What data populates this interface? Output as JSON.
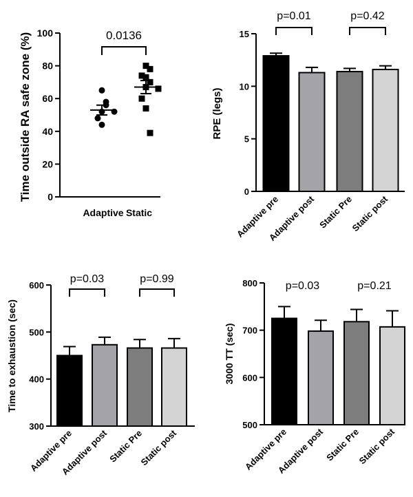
{
  "chart_data": [
    {
      "type": "scatter",
      "ylabel": "Time outside RA safe zone (%)",
      "ylim": [
        0,
        100
      ],
      "yticks": [
        0,
        20,
        40,
        60,
        80,
        100
      ],
      "categories": [
        "Adaptive",
        "Static"
      ],
      "series": [
        {
          "name": "Adaptive",
          "marker": "circle",
          "points": [
            65,
            58,
            56,
            52,
            52,
            48,
            44
          ],
          "mean": 53,
          "sem": 3
        },
        {
          "name": "Static",
          "marker": "square",
          "points": [
            80,
            78,
            74,
            73,
            70,
            70,
            67,
            66,
            60,
            54,
            39
          ],
          "mean": 67,
          "sem": 4
        }
      ],
      "annotations": [
        {
          "text": "0.0136",
          "from": 0,
          "to": 1
        }
      ],
      "color": "#000000"
    },
    {
      "type": "bar",
      "ylabel": "RPE (legs)",
      "ylim": [
        0,
        15
      ],
      "yticks": [
        0,
        5,
        10,
        15
      ],
      "categories": [
        "Adaptive pre",
        "Adaptive post",
        "Static Pre",
        "Static post"
      ],
      "values": [
        12.9,
        11.3,
        11.4,
        11.6
      ],
      "errors": [
        0.25,
        0.5,
        0.3,
        0.35
      ],
      "colors": [
        "#000000",
        "#a3a3a9",
        "#7d7d7d",
        "#d4d4d4"
      ],
      "annotations": [
        {
          "text": "p=0.01",
          "from": 0,
          "to": 1,
          "bracket": true
        },
        {
          "text": "p=0.42",
          "from": 2,
          "to": 3,
          "bracket": true
        }
      ]
    },
    {
      "type": "bar",
      "ylabel": "Time to exhaustion (sec)",
      "ylim": [
        300,
        600
      ],
      "yticks": [
        300,
        400,
        500,
        600
      ],
      "categories": [
        "Adaptive pre",
        "Adaptive post",
        "Static Pre",
        "Static post"
      ],
      "values": [
        450,
        473,
        466,
        466
      ],
      "errors": [
        19,
        16,
        18,
        20
      ],
      "colors": [
        "#000000",
        "#a3a3a9",
        "#7d7d7d",
        "#d4d4d4"
      ],
      "annotations": [
        {
          "text": "p=0.03",
          "from": 0,
          "to": 1,
          "bracket": true
        },
        {
          "text": "p=0.99",
          "from": 2,
          "to": 3,
          "bracket": true
        }
      ]
    },
    {
      "type": "bar",
      "ylabel": "3000 TT (sec)",
      "ylim": [
        500,
        800
      ],
      "yticks": [
        500,
        600,
        700,
        800
      ],
      "categories": [
        "Adaptive pre",
        "Adaptive post",
        "Static Pre",
        "Static post"
      ],
      "values": [
        725,
        698,
        718,
        707
      ],
      "errors": [
        25,
        23,
        26,
        34
      ],
      "colors": [
        "#000000",
        "#a3a3a9",
        "#7d7d7d",
        "#d4d4d4"
      ],
      "annotations": [
        {
          "text": "p=0.03",
          "from": 0,
          "to": 1,
          "bracket": false
        },
        {
          "text": "p=0.21",
          "from": 2,
          "to": 3,
          "bracket": false
        }
      ]
    }
  ]
}
